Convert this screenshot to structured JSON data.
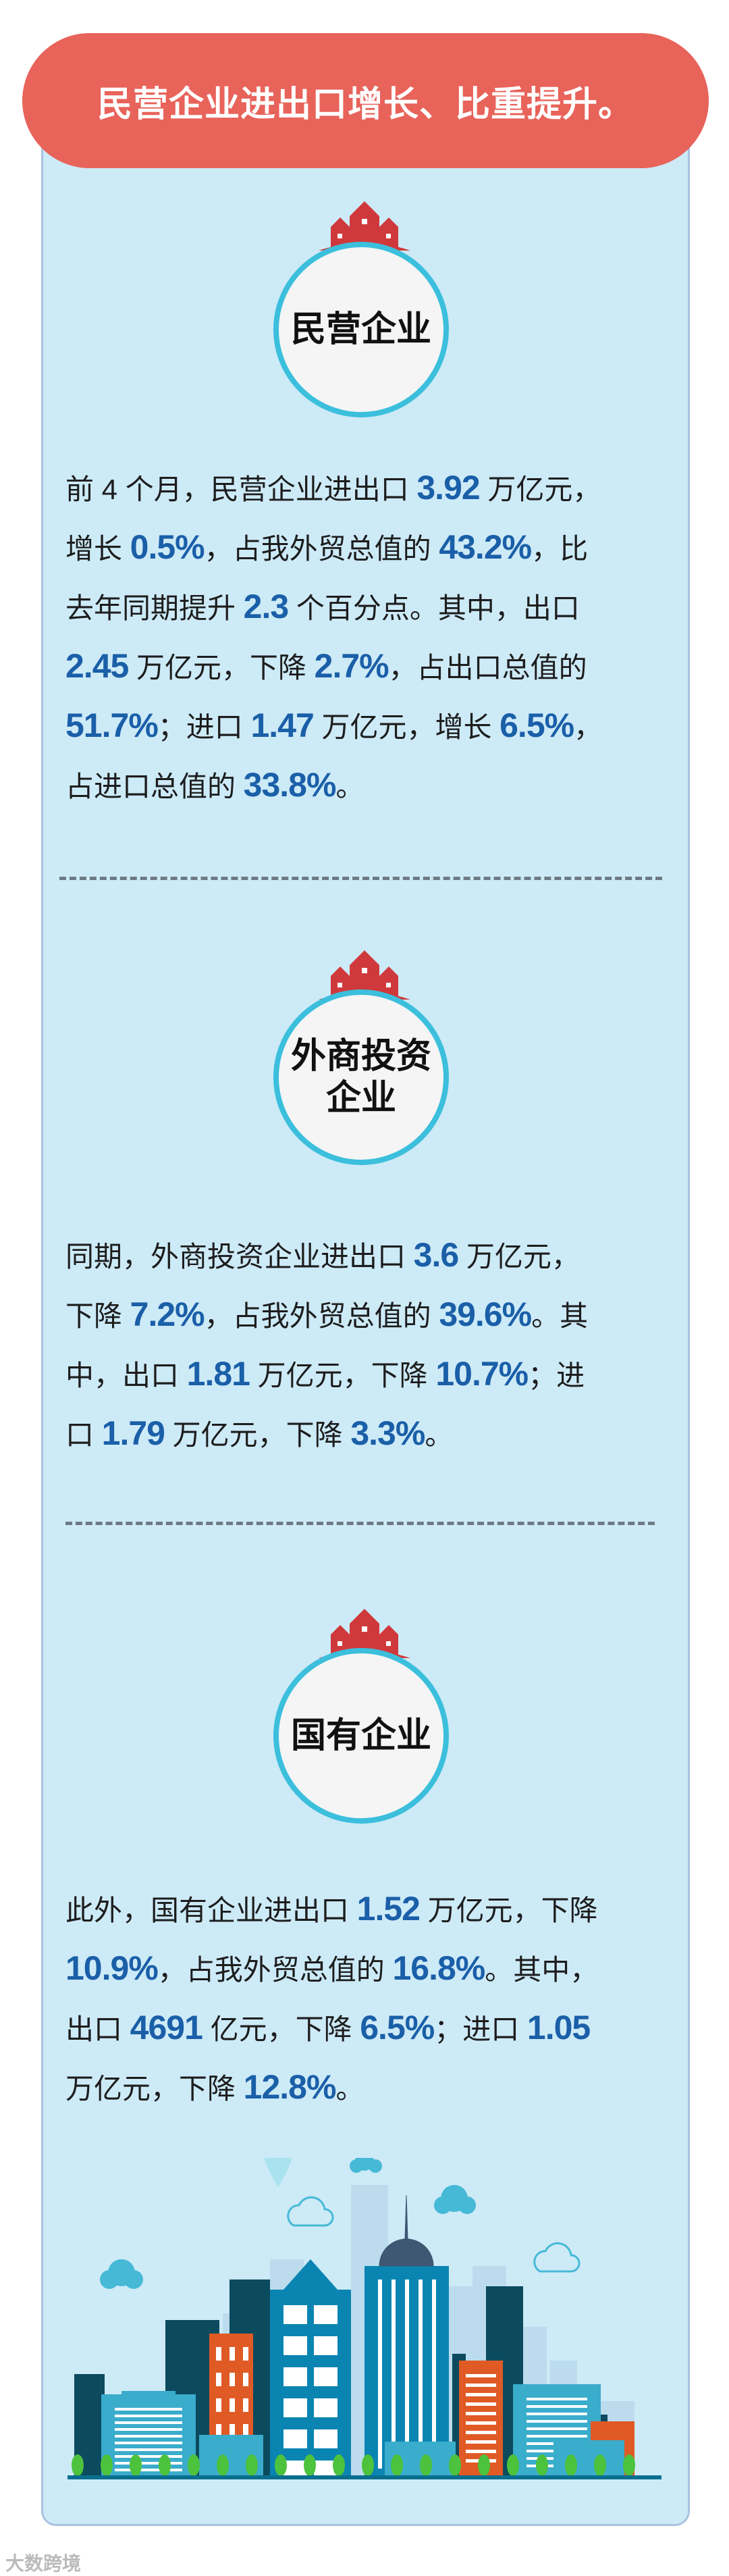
{
  "header": {
    "title": "民营企业进出口增长、比重提升。"
  },
  "colors": {
    "header": "#e8635a",
    "panel": "#cdeaf7",
    "highlight": "#1a5fa8",
    "badge_ring": "#3bbfdc",
    "houses": "#d0393c"
  },
  "sections": [
    {
      "badge": "民营企业",
      "lines": [
        [
          {
            "t": "前 4 个月，民营企业进出口 "
          },
          {
            "t": "3.92",
            "hl": true
          },
          {
            "t": " 万亿元，"
          }
        ],
        [
          {
            "t": "增长 "
          },
          {
            "t": "0.5%",
            "hl": true
          },
          {
            "t": "，占我外贸总值的 "
          },
          {
            "t": "43.2%",
            "hl": true
          },
          {
            "t": "，比"
          }
        ],
        [
          {
            "t": "去年同期提升 "
          },
          {
            "t": "2.3",
            "hl": true
          },
          {
            "t": " 个百分点。其中，出口"
          }
        ],
        [
          {
            "t": "2.45",
            "hl": true
          },
          {
            "t": " 万亿元，下降 "
          },
          {
            "t": "2.7%",
            "hl": true
          },
          {
            "t": "，占出口总值的"
          }
        ],
        [
          {
            "t": "51.7%",
            "hl": true
          },
          {
            "t": "；进口 "
          },
          {
            "t": "1.47",
            "hl": true
          },
          {
            "t": " 万亿元，增长 "
          },
          {
            "t": "6.5%",
            "hl": true
          },
          {
            "t": "，"
          }
        ],
        [
          {
            "t": "占进口总值的 "
          },
          {
            "t": "33.8%",
            "hl": true
          },
          {
            "t": "。"
          }
        ]
      ]
    },
    {
      "badge": "外商投资企业",
      "lines": [
        [
          {
            "t": "同期，外商投资企业进出口 "
          },
          {
            "t": "3.6",
            "hl": true
          },
          {
            "t": " 万亿元，"
          }
        ],
        [
          {
            "t": "下降 "
          },
          {
            "t": "7.2%",
            "hl": true
          },
          {
            "t": "，占我外贸总值的 "
          },
          {
            "t": "39.6%",
            "hl": true
          },
          {
            "t": "。其"
          }
        ],
        [
          {
            "t": "中，出口 "
          },
          {
            "t": "1.81",
            "hl": true
          },
          {
            "t": " 万亿元，下降 "
          },
          {
            "t": "10.7%",
            "hl": true
          },
          {
            "t": "；进"
          }
        ],
        [
          {
            "t": "口 "
          },
          {
            "t": "1.79",
            "hl": true
          },
          {
            "t": " 万亿元，下降 "
          },
          {
            "t": "3.3%",
            "hl": true
          },
          {
            "t": "。"
          }
        ]
      ]
    },
    {
      "badge": "国有企业",
      "lines": [
        [
          {
            "t": "此外，国有企业进出口 "
          },
          {
            "t": "1.52",
            "hl": true
          },
          {
            "t": " 万亿元，下降"
          }
        ],
        [
          {
            "t": "10.9%",
            "hl": true
          },
          {
            "t": "，占我外贸总值的 "
          },
          {
            "t": "16.8%",
            "hl": true
          },
          {
            "t": "。其中，"
          }
        ],
        [
          {
            "t": "出口 "
          },
          {
            "t": "4691",
            "hl": true
          },
          {
            "t": " 亿元，下降 "
          },
          {
            "t": "6.5%",
            "hl": true
          },
          {
            "t": "；进口 "
          },
          {
            "t": "1.05",
            "hl": true
          }
        ],
        [
          {
            "t": "万亿元，下降 "
          },
          {
            "t": "12.8%",
            "hl": true
          },
          {
            "t": "。"
          }
        ]
      ]
    }
  ],
  "watermark": "大数跨境"
}
